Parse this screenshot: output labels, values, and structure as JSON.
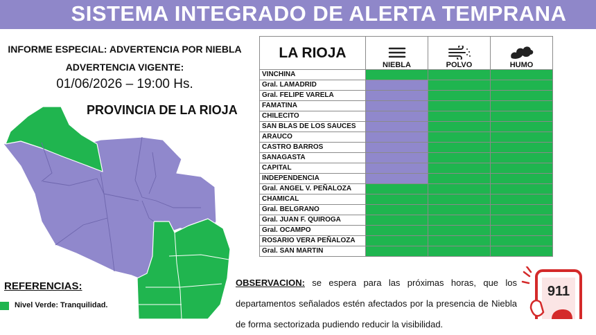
{
  "header": {
    "title": "SISTEMA INTEGRADO DE ALERTA TEMPRANA"
  },
  "report": {
    "title": "INFORME ESPECIAL: ADVERTENCIA POR NIEBLA",
    "validity_label": "ADVERTENCIA VIGENTE:",
    "datetime": "01/06/2026 – 19:00 Hs.",
    "map_title": "PROVINCIA DE LA RIOJA"
  },
  "table": {
    "title": "LA RIOJA",
    "columns": [
      "NIEBLA",
      "POLVO",
      "HUMO"
    ],
    "rows": [
      {
        "name": "VINCHINA",
        "cells": [
          "#1fb54f",
          "#1fb54f",
          "#1fb54f"
        ]
      },
      {
        "name": "Gral. LAMADRID",
        "cells": [
          "#9088cc",
          "#1fb54f",
          "#1fb54f"
        ]
      },
      {
        "name": "Gral. FELIPE VARELA",
        "cells": [
          "#9088cc",
          "#1fb54f",
          "#1fb54f"
        ]
      },
      {
        "name": "FAMATINA",
        "cells": [
          "#9088cc",
          "#1fb54f",
          "#1fb54f"
        ]
      },
      {
        "name": "CHILECITO",
        "cells": [
          "#9088cc",
          "#1fb54f",
          "#1fb54f"
        ]
      },
      {
        "name": "SAN BLAS DE LOS SAUCES",
        "cells": [
          "#9088cc",
          "#1fb54f",
          "#1fb54f"
        ]
      },
      {
        "name": "ARAUCO",
        "cells": [
          "#9088cc",
          "#1fb54f",
          "#1fb54f"
        ]
      },
      {
        "name": "CASTRO BARROS",
        "cells": [
          "#9088cc",
          "#1fb54f",
          "#1fb54f"
        ]
      },
      {
        "name": "SANAGASTA",
        "cells": [
          "#9088cc",
          "#1fb54f",
          "#1fb54f"
        ]
      },
      {
        "name": "CAPITAL",
        "cells": [
          "#9088cc",
          "#1fb54f",
          "#1fb54f"
        ]
      },
      {
        "name": "INDEPENDENCIA",
        "cells": [
          "#9088cc",
          "#1fb54f",
          "#1fb54f"
        ]
      },
      {
        "name": "Gral. ANGEL V. PEÑALOZA",
        "cells": [
          "#1fb54f",
          "#1fb54f",
          "#1fb54f"
        ]
      },
      {
        "name": "CHAMICAL",
        "cells": [
          "#1fb54f",
          "#1fb54f",
          "#1fb54f"
        ]
      },
      {
        "name": "Gral. BELGRANO",
        "cells": [
          "#1fb54f",
          "#1fb54f",
          "#1fb54f"
        ]
      },
      {
        "name": "Gral. JUAN F. QUIROGA",
        "cells": [
          "#1fb54f",
          "#1fb54f",
          "#1fb54f"
        ]
      },
      {
        "name": "Gral. OCAMPO",
        "cells": [
          "#1fb54f",
          "#1fb54f",
          "#1fb54f"
        ]
      },
      {
        "name": "ROSARIO VERA PEÑALOZA",
        "cells": [
          "#1fb54f",
          "#1fb54f",
          "#1fb54f"
        ]
      },
      {
        "name": "Gral. SAN MARTIN",
        "cells": [
          "#1fb54f",
          "#1fb54f",
          "#1fb54f"
        ]
      }
    ]
  },
  "references": {
    "title": "REFERENCIAS:",
    "items": [
      {
        "label": "Nivel Verde: Tranquilidad.",
        "color": "#1fb54f"
      }
    ]
  },
  "observation": {
    "label": "OBSERVACION:",
    "text": "se espera para las próximas horas, que los departamentos señalados estén afectados por la presencia de Niebla de forma sectorizada pudiendo reducir la visibilidad."
  },
  "emergency": {
    "number": "911"
  }
}
